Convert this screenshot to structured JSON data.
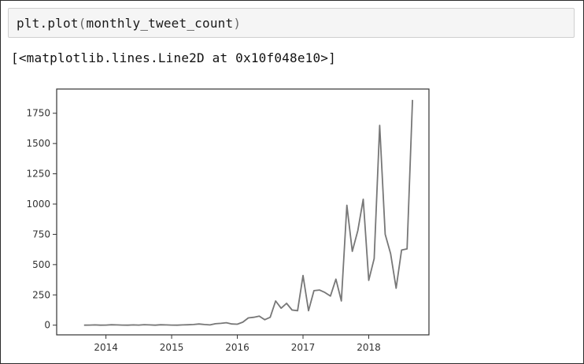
{
  "code_cell": {
    "func": "plt.plot",
    "open_paren": "(",
    "arg": "monthly_tweet_count",
    "close_paren": ")"
  },
  "output": {
    "repr": "[<matplotlib.lines.Line2D at 0x10f048e10>]"
  },
  "colors": {
    "line": "#777777",
    "axes": "#333333",
    "code_bg": "#f5f5f5"
  },
  "chart_data": {
    "type": "line",
    "title": "",
    "xlabel": "",
    "ylabel": "",
    "grid": false,
    "legend": "none",
    "xlim": [
      "2013-04-01",
      "2018-12-01"
    ],
    "ylim": [
      -80,
      1950
    ],
    "x_ticks": [
      "2014",
      "2015",
      "2016",
      "2017",
      "2018"
    ],
    "y_ticks": [
      0,
      250,
      500,
      750,
      1000,
      1250,
      1500,
      1750
    ],
    "series": [
      {
        "x": [
          "2013-09",
          "2013-10",
          "2013-11",
          "2013-12",
          "2014-01",
          "2014-02",
          "2014-03",
          "2014-04",
          "2014-05",
          "2014-06",
          "2014-07",
          "2014-08",
          "2014-09",
          "2014-10",
          "2014-11",
          "2014-12",
          "2015-01",
          "2015-02",
          "2015-03",
          "2015-04",
          "2015-05",
          "2015-06",
          "2015-07",
          "2015-08",
          "2015-09",
          "2015-10",
          "2015-11",
          "2015-12",
          "2016-01",
          "2016-02",
          "2016-03",
          "2016-04",
          "2016-05",
          "2016-06",
          "2016-07",
          "2016-08",
          "2016-09",
          "2016-10",
          "2016-11",
          "2016-12",
          "2017-01",
          "2017-02",
          "2017-03",
          "2017-04",
          "2017-05",
          "2017-06",
          "2017-07",
          "2017-08",
          "2017-09",
          "2017-10",
          "2017-11",
          "2017-12",
          "2018-01",
          "2018-02",
          "2018-03",
          "2018-04",
          "2018-05",
          "2018-06",
          "2018-07",
          "2018-08",
          "2018-09"
        ],
        "values": [
          0,
          1,
          2,
          0,
          1,
          3,
          2,
          1,
          0,
          2,
          1,
          4,
          2,
          0,
          3,
          2,
          1,
          0,
          2,
          3,
          5,
          10,
          5,
          2,
          12,
          15,
          20,
          10,
          8,
          25,
          60,
          65,
          75,
          45,
          65,
          200,
          140,
          180,
          125,
          120,
          410,
          120,
          285,
          290,
          270,
          240,
          380,
          200,
          990,
          610,
          780,
          1040,
          370,
          550,
          1650,
          750,
          590,
          305,
          620,
          630,
          1860
        ]
      }
    ]
  }
}
